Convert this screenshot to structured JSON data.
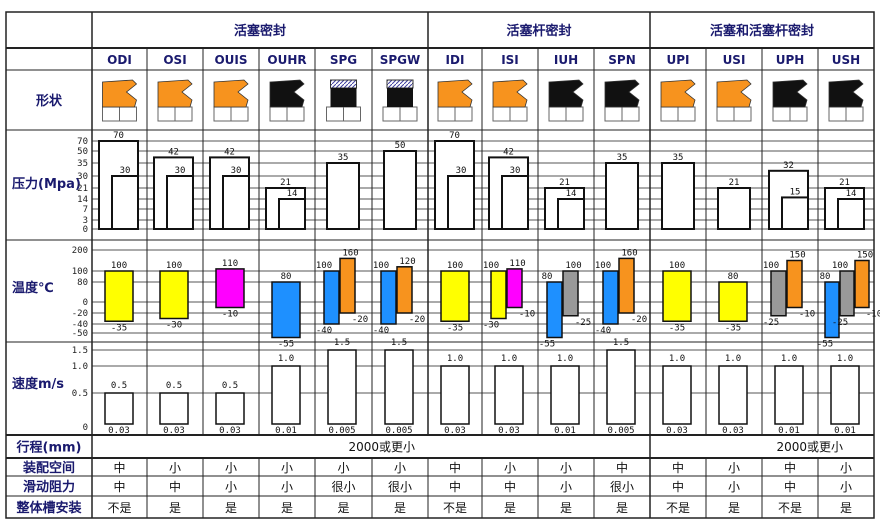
{
  "groups": [
    {
      "title": "活塞密封",
      "span": [
        0,
        6
      ]
    },
    {
      "title": "活塞杆密封",
      "span": [
        6,
        10
      ]
    },
    {
      "title": "活塞和活塞杆密封",
      "span": [
        10,
        14
      ]
    }
  ],
  "row_labels": {
    "shape": "形状",
    "pressure": "压力(Mpa)",
    "temperature": "温度℃",
    "speed": "速度m/s",
    "stroke": "行程(mm)",
    "space": "装配空间",
    "friction": "滑动阻力",
    "groove": "整体槽安装"
  },
  "colors": {
    "yellow": "#ffff00",
    "magenta": "#ff00ff",
    "blue": "#1e90ff",
    "orange": "#f7931e",
    "gray": "#999999",
    "header_text": "#1a1a6e"
  },
  "scales": {
    "pressure_ticks": [
      70,
      50,
      35,
      30,
      21,
      14,
      7,
      3,
      0
    ],
    "temperature_ticks": [
      200,
      100,
      80,
      0,
      -20,
      -40,
      -50
    ],
    "speed_ticks": [
      "1.5",
      "1.0",
      "0.5",
      "0"
    ]
  },
  "stroke": {
    "piston_and_rod": "2000或更小",
    "combined": "2000或更小"
  },
  "seals": [
    {
      "name": "ODI",
      "shape_color": "orange",
      "pressure": [
        70,
        30
      ],
      "temp": [
        {
          "max": 100,
          "min": -35,
          "color": "yellow"
        }
      ],
      "speed": {
        "max": "0.5",
        "min": "0.03"
      },
      "space": "中",
      "friction": "中",
      "groove": "不是"
    },
    {
      "name": "OSI",
      "shape_color": "orange",
      "pressure": [
        42,
        30
      ],
      "temp": [
        {
          "max": 100,
          "min": -30,
          "color": "yellow"
        }
      ],
      "speed": {
        "max": "0.5",
        "min": "0.03"
      },
      "space": "小",
      "friction": "中",
      "groove": "是"
    },
    {
      "name": "OUIS",
      "shape_color": "orange",
      "pressure": [
        42,
        30
      ],
      "temp": [
        {
          "max": 110,
          "min": -10,
          "color": "magenta"
        }
      ],
      "speed": {
        "max": "0.5",
        "min": "0.03"
      },
      "space": "小",
      "friction": "小",
      "groove": "是"
    },
    {
      "name": "OUHR",
      "shape_color": "black",
      "pressure": [
        21,
        14
      ],
      "temp": [
        {
          "max": 80,
          "min": -55,
          "color": "blue"
        }
      ],
      "speed": {
        "max": "1.0",
        "min": "0.01"
      },
      "space": "小",
      "friction": "小",
      "groove": "是"
    },
    {
      "name": "SPG",
      "shape_color": "hatched",
      "pressure": [
        35
      ],
      "temp": [
        {
          "max": 100,
          "min": -40,
          "color": "blue"
        },
        {
          "max": 160,
          "min": -20,
          "color": "orange"
        }
      ],
      "speed": {
        "max": "1.5",
        "min": "0.005"
      },
      "space": "小",
      "friction": "很小",
      "groove": "是"
    },
    {
      "name": "SPGW",
      "shape_color": "hatched",
      "pressure": [
        50
      ],
      "temp": [
        {
          "max": 100,
          "min": -40,
          "color": "blue"
        },
        {
          "max": 120,
          "min": -20,
          "color": "orange"
        }
      ],
      "speed": {
        "max": "1.5",
        "min": "0.005"
      },
      "space": "小",
      "friction": "很小",
      "groove": "是"
    },
    {
      "name": "IDI",
      "shape_color": "orange",
      "pressure": [
        70,
        30
      ],
      "temp": [
        {
          "max": 100,
          "min": -35,
          "color": "yellow"
        }
      ],
      "speed": {
        "max": "1.0",
        "min": "0.03"
      },
      "space": "中",
      "friction": "中",
      "groove": "不是"
    },
    {
      "name": "ISI",
      "shape_color": "orange",
      "pressure": [
        42,
        30
      ],
      "temp": [
        {
          "max": 100,
          "min": -30,
          "color": "yellow"
        },
        {
          "max": 110,
          "min": -10,
          "color": "magenta"
        }
      ],
      "speed": {
        "max": "1.0",
        "min": "0.03"
      },
      "space": "小",
      "friction": "中",
      "groove": "是"
    },
    {
      "name": "IUH",
      "shape_color": "black",
      "pressure": [
        21,
        14
      ],
      "temp": [
        {
          "max": 80,
          "min": -55,
          "color": "blue"
        },
        {
          "max": 100,
          "min": -25,
          "color": "gray"
        }
      ],
      "speed": {
        "max": "1.0",
        "min": "0.01"
      },
      "space": "小",
      "friction": "小",
      "groove": "是"
    },
    {
      "name": "SPN",
      "shape_color": "black",
      "pressure": [
        35
      ],
      "temp": [
        {
          "max": 100,
          "min": -40,
          "color": "blue"
        },
        {
          "max": 160,
          "min": -20,
          "color": "orange"
        }
      ],
      "speed": {
        "max": "1.5",
        "min": "0.005"
      },
      "space": "中",
      "friction": "很小",
      "groove": "是"
    },
    {
      "name": "UPI",
      "shape_color": "orange",
      "pressure": [
        35
      ],
      "temp": [
        {
          "max": 100,
          "min": -35,
          "color": "yellow"
        }
      ],
      "speed": {
        "max": "1.0",
        "min": "0.03"
      },
      "space": "中",
      "friction": "中",
      "groove": "不是"
    },
    {
      "name": "USI",
      "shape_color": "orange",
      "pressure": [
        21
      ],
      "temp": [
        {
          "max": 80,
          "min": -35,
          "color": "yellow"
        }
      ],
      "speed": {
        "max": "1.0",
        "min": "0.03"
      },
      "space": "小",
      "friction": "小",
      "groove": "是"
    },
    {
      "name": "UPH",
      "shape_color": "black",
      "pressure": [
        32,
        15
      ],
      "temp": [
        {
          "max": 100,
          "min": -25,
          "color": "gray"
        },
        {
          "max": 150,
          "min": -10,
          "color": "orange"
        }
      ],
      "speed": {
        "max": "1.0",
        "min": "0.01"
      },
      "space": "中",
      "friction": "中",
      "groove": "不是"
    },
    {
      "name": "USH",
      "shape_color": "black",
      "pressure": [
        21,
        14
      ],
      "temp": [
        {
          "max": 80,
          "min": -55,
          "color": "blue"
        },
        {
          "max": 100,
          "min": -25,
          "color": "gray"
        },
        {
          "max": 150,
          "min": -10,
          "color": "orange"
        }
      ],
      "speed": {
        "max": "1.0",
        "min": "0.01"
      },
      "space": "小",
      "friction": "小",
      "groove": "是"
    }
  ]
}
